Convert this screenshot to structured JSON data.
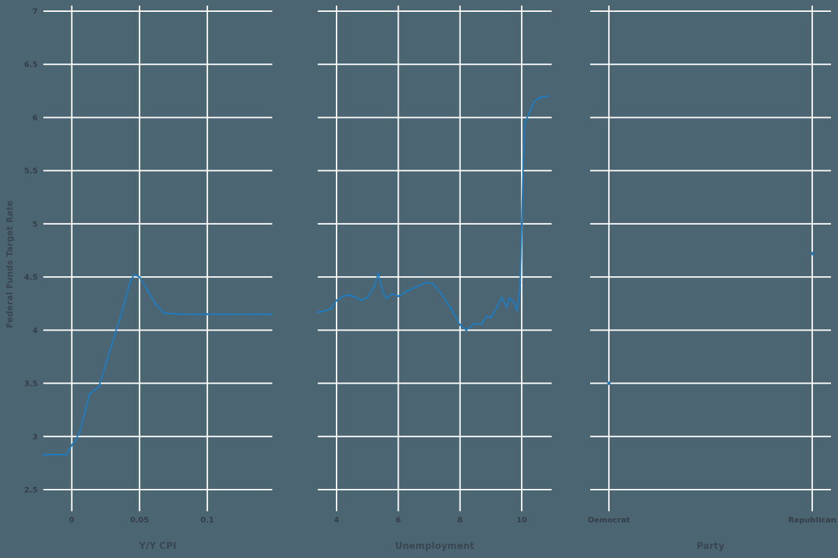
{
  "colors": {
    "background": "#4b6572",
    "grid": "#ffffff",
    "series": "#1f7bc0",
    "tick_label": "#343f49",
    "axis_title": "#3a4650"
  },
  "chart_data": {
    "type": "line",
    "title": "",
    "ylabel": "Federal Funds Target Rate",
    "ylim": [
      2.5,
      7
    ],
    "y_ticks": [
      2.5,
      3,
      3.5,
      4,
      4.5,
      5,
      5.5,
      6,
      6.5,
      7
    ],
    "y_tick_labels": [
      "2.5",
      "3",
      "3.5",
      "4",
      "4.5",
      "5",
      "5.5",
      "6",
      "6.5",
      "7"
    ],
    "grid": true,
    "legend_position": "none",
    "facets": [
      {
        "xlabel": "Y/Y CPI",
        "xlim": [
          -0.021,
          0.148
        ],
        "x_ticks": [
          0,
          0.05,
          0.1
        ],
        "x_tick_labels": [
          "0",
          "0.05",
          "0.1"
        ],
        "mark": "line",
        "points": [
          [
            -0.021,
            2.83
          ],
          [
            -0.012,
            2.83
          ],
          [
            -0.004,
            2.83
          ],
          [
            0.0,
            2.92
          ],
          [
            0.003,
            2.97
          ],
          [
            0.006,
            3.05
          ],
          [
            0.01,
            3.25
          ],
          [
            0.013,
            3.4
          ],
          [
            0.017,
            3.44
          ],
          [
            0.02,
            3.47
          ],
          [
            0.026,
            3.72
          ],
          [
            0.032,
            3.97
          ],
          [
            0.038,
            4.22
          ],
          [
            0.043,
            4.46
          ],
          [
            0.046,
            4.52
          ],
          [
            0.05,
            4.5
          ],
          [
            0.056,
            4.37
          ],
          [
            0.062,
            4.24
          ],
          [
            0.068,
            4.16
          ],
          [
            0.08,
            4.15
          ],
          [
            0.1,
            4.15
          ],
          [
            0.125,
            4.15
          ],
          [
            0.147,
            4.15
          ]
        ]
      },
      {
        "xlabel": "Unemployment",
        "xlim": [
          3.39,
          10.97
        ],
        "x_ticks": [
          4,
          6,
          8,
          10
        ],
        "x_tick_labels": [
          "4",
          "6",
          "8",
          "10"
        ],
        "mark": "line",
        "points": [
          [
            3.4,
            4.17
          ],
          [
            3.6,
            4.18
          ],
          [
            3.8,
            4.2
          ],
          [
            4.0,
            4.28
          ],
          [
            4.2,
            4.32
          ],
          [
            4.4,
            4.33
          ],
          [
            4.6,
            4.31
          ],
          [
            4.8,
            4.28
          ],
          [
            5.0,
            4.31
          ],
          [
            5.2,
            4.4
          ],
          [
            5.35,
            4.53
          ],
          [
            5.5,
            4.36
          ],
          [
            5.6,
            4.3
          ],
          [
            5.8,
            4.34
          ],
          [
            6.0,
            4.32
          ],
          [
            6.3,
            4.37
          ],
          [
            6.6,
            4.41
          ],
          [
            6.9,
            4.45
          ],
          [
            7.1,
            4.44
          ],
          [
            7.4,
            4.34
          ],
          [
            7.7,
            4.2
          ],
          [
            8.0,
            4.05
          ],
          [
            8.2,
            4.0
          ],
          [
            8.45,
            4.06
          ],
          [
            8.7,
            4.06
          ],
          [
            8.85,
            4.13
          ],
          [
            9.0,
            4.12
          ],
          [
            9.2,
            4.22
          ],
          [
            9.35,
            4.31
          ],
          [
            9.5,
            4.22
          ],
          [
            9.6,
            4.3
          ],
          [
            9.75,
            4.26
          ],
          [
            9.85,
            4.18
          ],
          [
            9.95,
            4.45
          ],
          [
            10.0,
            5.0
          ],
          [
            10.05,
            5.6
          ],
          [
            10.1,
            5.95
          ],
          [
            10.25,
            6.05
          ],
          [
            10.4,
            6.15
          ],
          [
            10.6,
            6.19
          ],
          [
            10.85,
            6.2
          ]
        ]
      },
      {
        "xlabel": "Party",
        "categories": [
          "Democrat",
          "Republican"
        ],
        "mark": "point",
        "values": [
          3.5,
          4.72
        ]
      }
    ]
  }
}
